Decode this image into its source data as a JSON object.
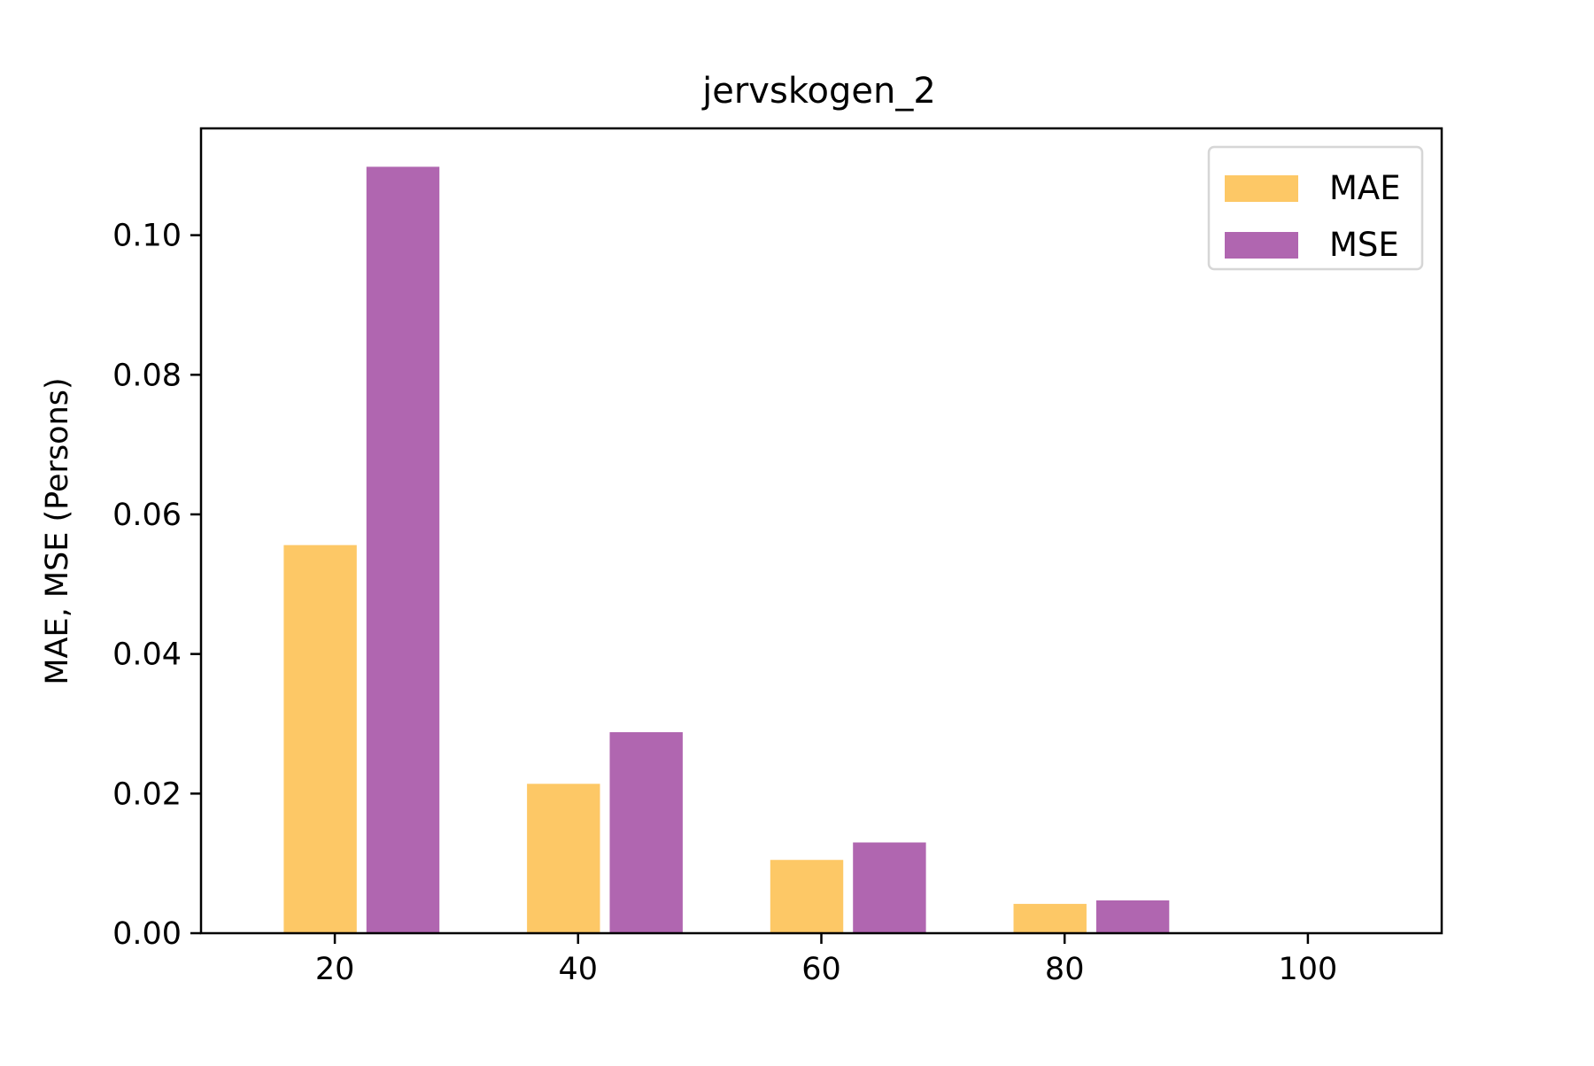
{
  "chart_data": {
    "type": "bar",
    "title": "jervskogen_2",
    "xlabel": "",
    "ylabel": "MAE, MSE (Persons)",
    "categories": [
      20,
      40,
      60,
      80,
      100
    ],
    "series": [
      {
        "name": "MAE",
        "values": [
          0.0556,
          0.0214,
          0.0105,
          0.0042,
          0
        ],
        "color": "#fdc866"
      },
      {
        "name": "MSE",
        "values": [
          0.1098,
          0.0288,
          0.013,
          0.0047,
          0
        ],
        "color": "#b066b0"
      }
    ],
    "xlim": [
      9,
      111
    ],
    "ylim": [
      0,
      0.1153
    ],
    "xticks": [
      20,
      40,
      60,
      80,
      100
    ],
    "yticks": [
      0.0,
      0.02,
      0.04,
      0.06,
      0.08,
      0.1
    ],
    "ytick_labels": [
      "0.00",
      "0.02",
      "0.04",
      "0.06",
      "0.08",
      "0.10"
    ],
    "grid": false,
    "legend_position": "top-right"
  }
}
